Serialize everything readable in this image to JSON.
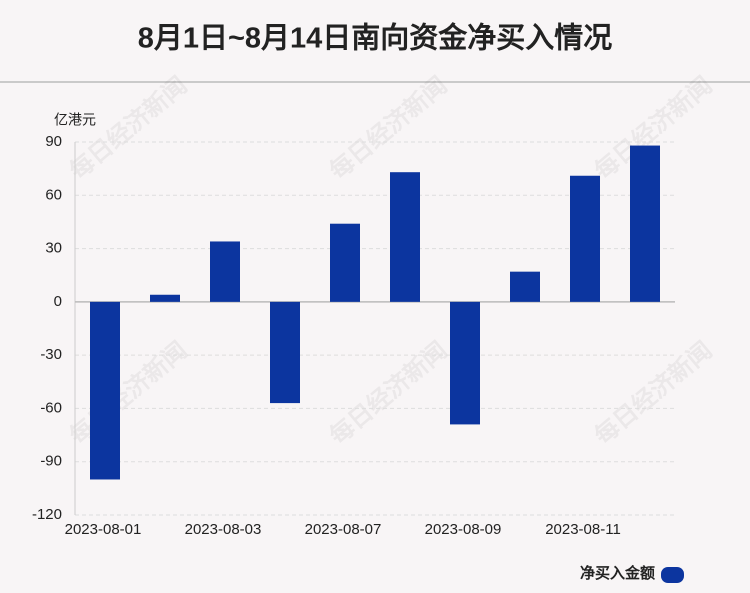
{
  "chart_data": {
    "type": "bar",
    "title": "8月1日~8月14日南向资金净买入情况",
    "y_axis_label": "亿港元",
    "watermark": "每日经济新闻",
    "categories": [
      "2023-08-01",
      null,
      "2023-08-03",
      null,
      "2023-08-07",
      null,
      "2023-08-09",
      null,
      "2023-08-11",
      null
    ],
    "series": [
      {
        "name": "净买入金额",
        "color": "#0c359f",
        "values": [
          -100,
          4,
          34,
          -57,
          44,
          73,
          -69,
          17,
          71,
          88
        ]
      }
    ],
    "ylim": [
      -120,
      90
    ],
    "yticks": [
      -120,
      -90,
      -60,
      -30,
      0,
      30,
      60,
      90
    ],
    "grid": true,
    "legend": "bottom-right"
  }
}
